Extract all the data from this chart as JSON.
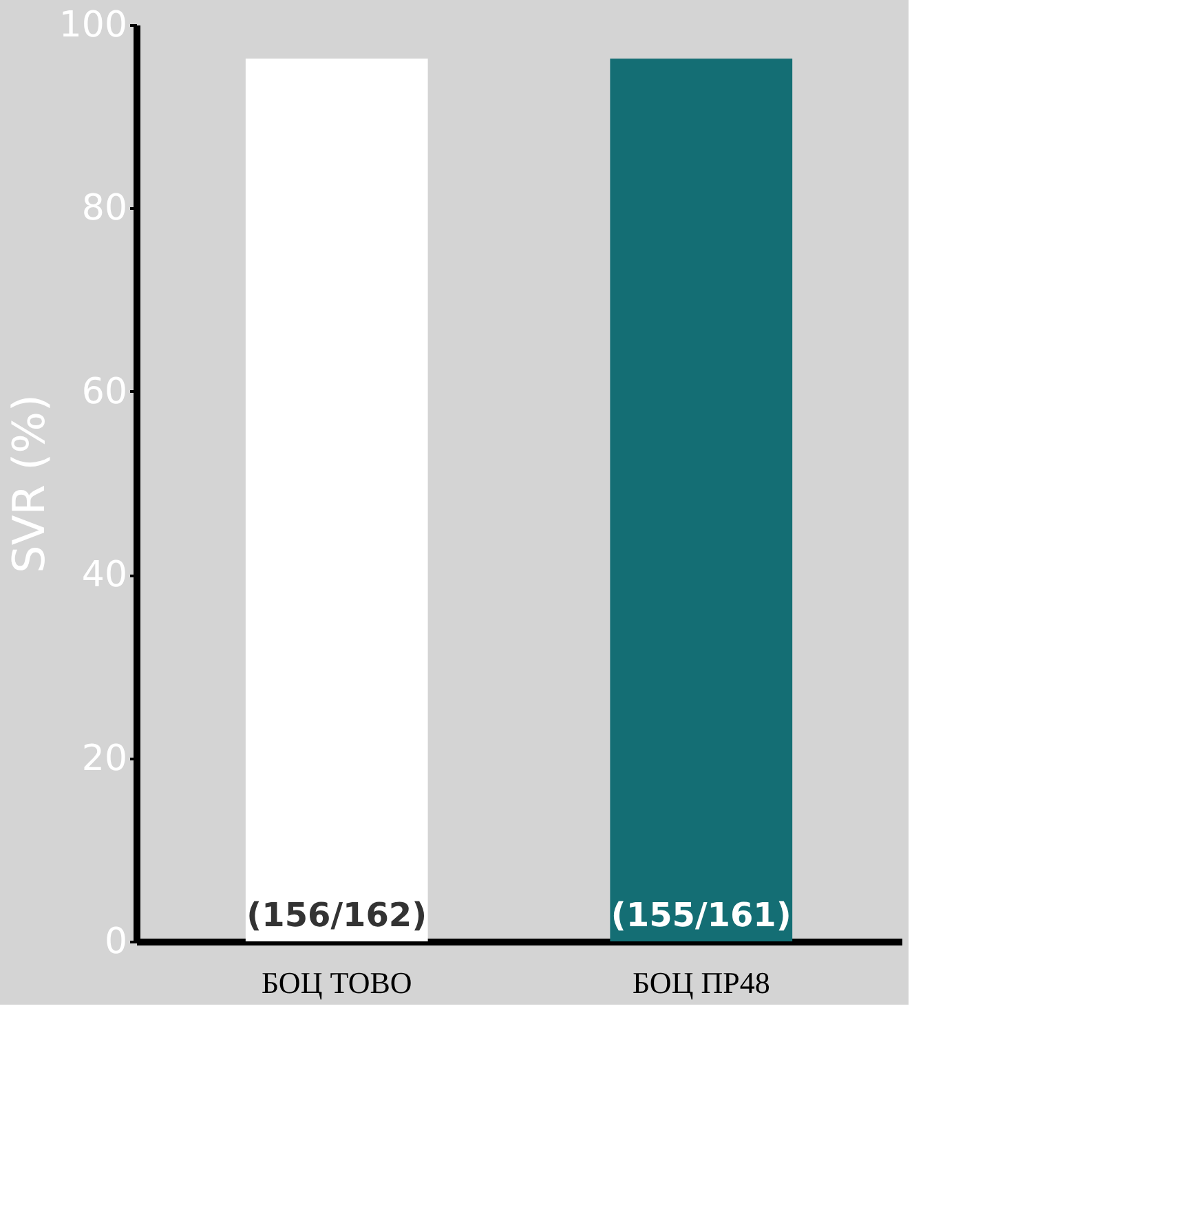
{
  "chart_data": {
    "type": "bar",
    "ylabel": "SVR (%)",
    "categories": [
      "БОЦ ТОВО",
      "БОЦ ПР48"
    ],
    "values": [
      96.3,
      96.3
    ],
    "colors": [
      "#ffffff",
      "#146e74"
    ],
    "value_labels": [
      "(156/162)",
      "(155/161)"
    ],
    "ylim": [
      0,
      100
    ],
    "yticks": [
      0,
      20,
      40,
      60,
      80,
      100
    ],
    "grid": false
  }
}
